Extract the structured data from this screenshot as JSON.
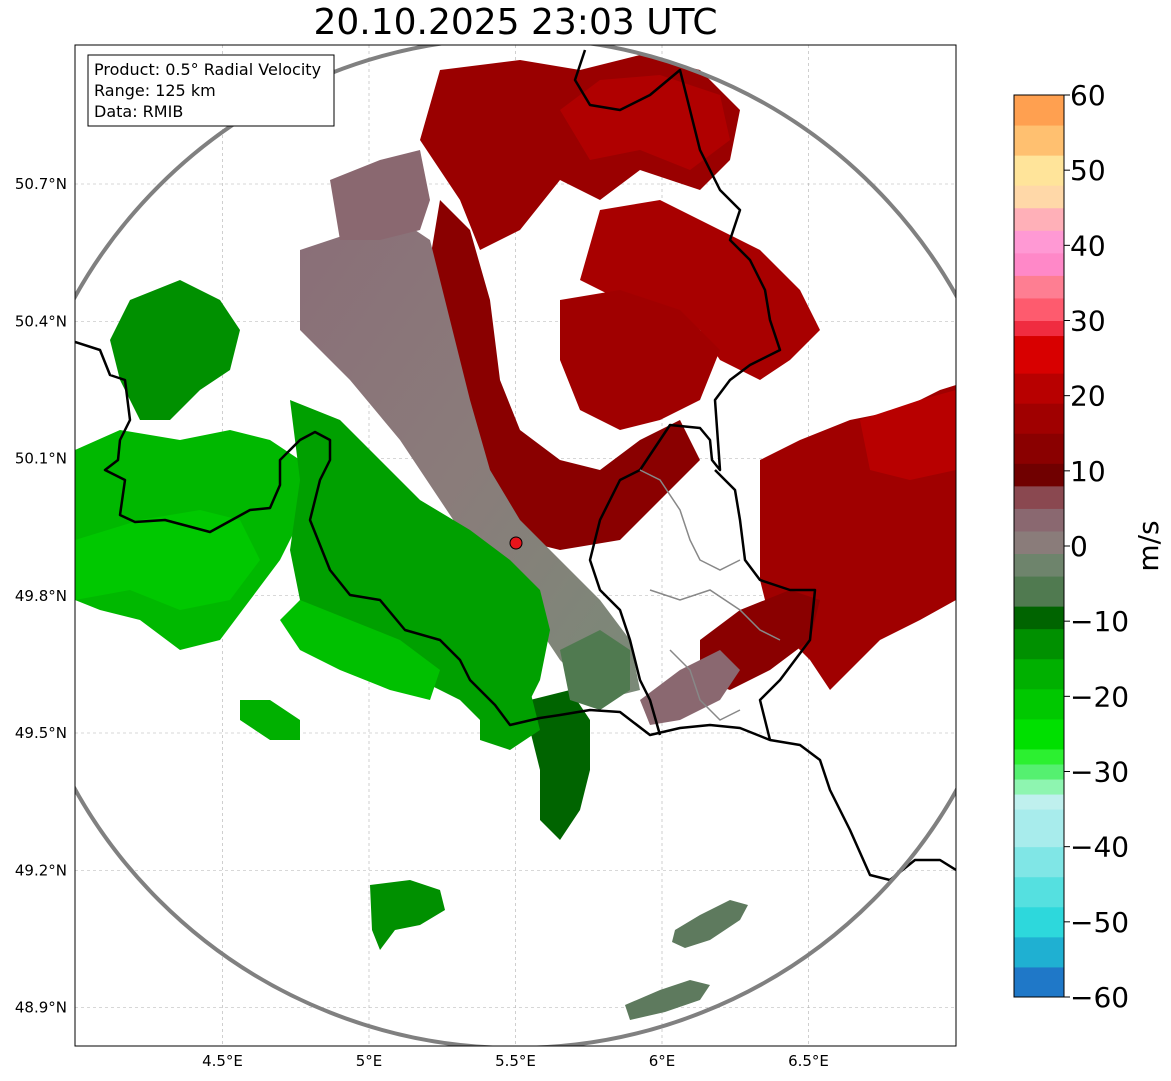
{
  "title": "20.10.2025 23:03 UTC",
  "info_box": {
    "lines": [
      "Product: 0.5° Radial Velocity",
      "Range: 125 km",
      "Data: RMIB"
    ]
  },
  "map": {
    "x_ticks": [
      {
        "value": 4.5,
        "label": "4.5°E"
      },
      {
        "value": 5.0,
        "label": "5°E"
      },
      {
        "value": 5.5,
        "label": "5.5°E"
      },
      {
        "value": 6.0,
        "label": "6°E"
      },
      {
        "value": 6.5,
        "label": "6.5°E"
      }
    ],
    "y_ticks": [
      {
        "value": 50.7,
        "label": "50.7°N"
      },
      {
        "value": 50.4,
        "label": "50.4°N"
      },
      {
        "value": 50.1,
        "label": "50.1°N"
      },
      {
        "value": 49.8,
        "label": "49.8°N"
      },
      {
        "value": 49.5,
        "label": "49.5°N"
      },
      {
        "value": 49.2,
        "label": "49.2°N"
      },
      {
        "value": 48.9,
        "label": "48.9°N"
      }
    ],
    "lon_range": [
      4.0,
      7.0
    ],
    "lat_range": [
      48.8,
      51.0
    ],
    "radar_site": {
      "lon": 5.505,
      "lat": 49.914,
      "color": "#e8141b"
    },
    "range_ring_color": "#808080",
    "gridlines": true
  },
  "colorbar": {
    "label": "m/s",
    "range": [
      -60,
      60
    ],
    "ticks": [
      {
        "value": 60,
        "label": "60"
      },
      {
        "value": 50,
        "label": "50"
      },
      {
        "value": 40,
        "label": "40"
      },
      {
        "value": 30,
        "label": "30"
      },
      {
        "value": 20,
        "label": "20"
      },
      {
        "value": 10,
        "label": "10"
      },
      {
        "value": 0,
        "label": "0"
      },
      {
        "value": -10,
        "label": "−10"
      },
      {
        "value": -20,
        "label": "−20"
      },
      {
        "value": -30,
        "label": "−30"
      },
      {
        "value": -40,
        "label": "−40"
      },
      {
        "value": -50,
        "label": "−50"
      },
      {
        "value": -60,
        "label": "−60"
      }
    ],
    "stops": [
      {
        "from": -60,
        "to": -56,
        "color": "#1f78c8"
      },
      {
        "from": -56,
        "to": -52,
        "color": "#1fb0d2"
      },
      {
        "from": -52,
        "to": -48,
        "color": "#2dd8dc"
      },
      {
        "from": -48,
        "to": -44,
        "color": "#55e0e0"
      },
      {
        "from": -44,
        "to": -40,
        "color": "#80e6e6"
      },
      {
        "from": -40,
        "to": -35,
        "color": "#a8ecec"
      },
      {
        "from": -35,
        "to": -33,
        "color": "#bff0ee"
      },
      {
        "from": -33,
        "to": -31,
        "color": "#8ef5b0"
      },
      {
        "from": -31,
        "to": -29,
        "color": "#55f070"
      },
      {
        "from": -29,
        "to": -27,
        "color": "#2cf030"
      },
      {
        "from": -27,
        "to": -23,
        "color": "#00e000"
      },
      {
        "from": -23,
        "to": -19,
        "color": "#00c800"
      },
      {
        "from": -19,
        "to": -15,
        "color": "#00b000"
      },
      {
        "from": -15,
        "to": -11,
        "color": "#009000"
      },
      {
        "from": -11,
        "to": -8,
        "color": "#006400"
      },
      {
        "from": -8,
        "to": -4,
        "color": "#507a50"
      },
      {
        "from": -4,
        "to": -1,
        "color": "#6e846c"
      },
      {
        "from": -1,
        "to": 2,
        "color": "#8a7c7a"
      },
      {
        "from": 2,
        "to": 5,
        "color": "#8a6870"
      },
      {
        "from": 5,
        "to": 8,
        "color": "#8a4850"
      },
      {
        "from": 8,
        "to": 11,
        "color": "#700000"
      },
      {
        "from": 11,
        "to": 15,
        "color": "#8a0000"
      },
      {
        "from": 15,
        "to": 19,
        "color": "#a00000"
      },
      {
        "from": 19,
        "to": 23,
        "color": "#b80000"
      },
      {
        "from": 23,
        "to": 28,
        "color": "#d80000"
      },
      {
        "from": 28,
        "to": 30,
        "color": "#f02c40"
      },
      {
        "from": 30,
        "to": 33,
        "color": "#fe5b6e"
      },
      {
        "from": 33,
        "to": 36,
        "color": "#fe7e92"
      },
      {
        "from": 36,
        "to": 39,
        "color": "#ff88c8"
      },
      {
        "from": 39,
        "to": 42,
        "color": "#ff99d4"
      },
      {
        "from": 42,
        "to": 45,
        "color": "#ffb0b8"
      },
      {
        "from": 45,
        "to": 48,
        "color": "#ffd8a8"
      },
      {
        "from": 48,
        "to": 52,
        "color": "#ffe49a"
      },
      {
        "from": 52,
        "to": 56,
        "color": "#ffc070"
      },
      {
        "from": 56,
        "to": 60,
        "color": "#ffa050"
      }
    ]
  }
}
